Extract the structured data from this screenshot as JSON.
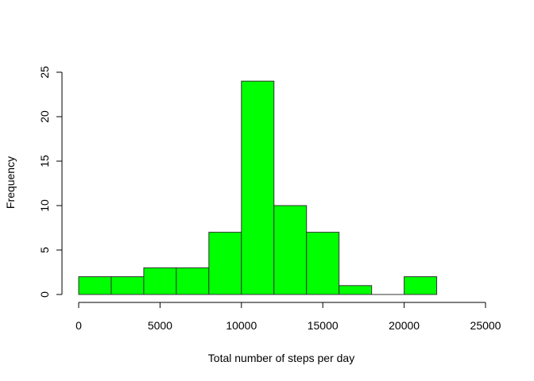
{
  "chart_data": {
    "type": "bar",
    "title": "",
    "xlabel": "Total number of steps per day",
    "ylabel": "Frequency",
    "xlim": [
      0,
      25000
    ],
    "ylim": [
      0,
      25
    ],
    "bin_width": 2000,
    "bins": [
      {
        "start": 0,
        "end": 2000,
        "count": 2
      },
      {
        "start": 2000,
        "end": 4000,
        "count": 2
      },
      {
        "start": 4000,
        "end": 6000,
        "count": 3
      },
      {
        "start": 6000,
        "end": 8000,
        "count": 3
      },
      {
        "start": 8000,
        "end": 10000,
        "count": 7
      },
      {
        "start": 10000,
        "end": 12000,
        "count": 24
      },
      {
        "start": 12000,
        "end": 14000,
        "count": 10
      },
      {
        "start": 14000,
        "end": 16000,
        "count": 7
      },
      {
        "start": 16000,
        "end": 18000,
        "count": 1
      },
      {
        "start": 18000,
        "end": 20000,
        "count": 0
      },
      {
        "start": 20000,
        "end": 22000,
        "count": 2
      }
    ],
    "x_ticks": [
      0,
      5000,
      10000,
      15000,
      20000,
      25000
    ],
    "y_ticks": [
      0,
      5,
      10,
      15,
      20,
      25
    ],
    "bar_color": "#00ff00",
    "grid": false,
    "legend": "none"
  }
}
